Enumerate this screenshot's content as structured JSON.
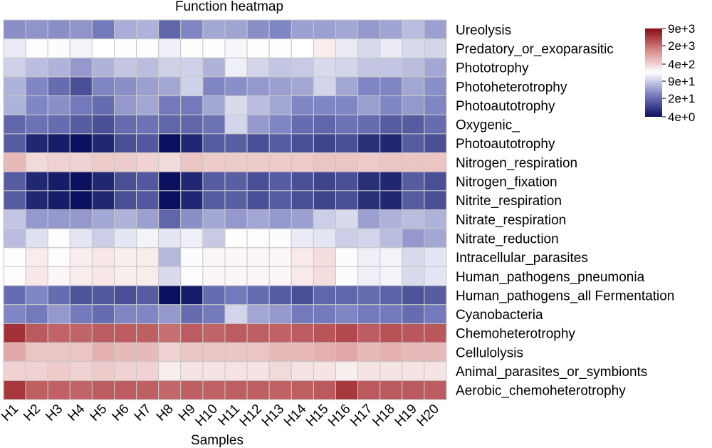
{
  "chart_data": {
    "type": "heatmap",
    "title": "Function heatmap",
    "xlabel": "Samples",
    "ylabel": "",
    "x": [
      "H1",
      "H2",
      "H3",
      "H4",
      "H5",
      "H6",
      "H7",
      "H8",
      "H9",
      "H10",
      "H11",
      "H12",
      "H13",
      "H14",
      "H15",
      "H16",
      "H17",
      "H18",
      "H19",
      "H20"
    ],
    "y": [
      "Ureolysis",
      "Predatory_or_exoparasitic",
      "Phototrophy",
      "Photoheterotrophy",
      "Photoautotrophy",
      "Oxygenic_",
      "Photoautotrophy",
      "Nitrogen_respiration",
      "Nitrogen_fixation",
      "Nitrite_respiration",
      "Nitrate_respiration",
      "Nitrate_reduction",
      "Intracellular_parasites",
      "Human_pathogens_pneumonia",
      "Human_pathogens_all Fermentation",
      "Cyanobacteria",
      "Chemoheterotrophy",
      "Cellulolysis",
      "Animal_parasites_or_symbionts",
      "Aerobic_chemoheterotrophy"
    ],
    "scale": "log",
    "color_scale": {
      "low": "#0a0f5e",
      "mid": "#ffffff",
      "high": "#8b0a14",
      "ticks": [
        "9e+3",
        "2e+3",
        "4e+2",
        "9e+1",
        "2e+1",
        "4e+0"
      ],
      "tick_values": [
        9000,
        2000,
        400,
        90,
        20,
        4
      ]
    },
    "values": [
      [
        35,
        38,
        35,
        38,
        25,
        55,
        60,
        18,
        30,
        50,
        48,
        35,
        30,
        45,
        45,
        50,
        40,
        48,
        70,
        45
      ],
      [
        140,
        200,
        180,
        160,
        190,
        200,
        200,
        150,
        200,
        200,
        170,
        200,
        200,
        190,
        260,
        140,
        110,
        140,
        110,
        100
      ],
      [
        95,
        70,
        60,
        40,
        60,
        80,
        70,
        95,
        95,
        60,
        150,
        100,
        80,
        85,
        110,
        100,
        80,
        80,
        70,
        50
      ],
      [
        60,
        30,
        20,
        12,
        30,
        35,
        45,
        50,
        95,
        30,
        35,
        40,
        45,
        50,
        100,
        50,
        30,
        30,
        50,
        35
      ],
      [
        60,
        30,
        35,
        25,
        20,
        40,
        50,
        25,
        25,
        50,
        110,
        70,
        50,
        30,
        30,
        30,
        45,
        30,
        40,
        30
      ],
      [
        18,
        22,
        20,
        15,
        12,
        20,
        22,
        18,
        18,
        22,
        100,
        40,
        30,
        20,
        18,
        22,
        20,
        15,
        15,
        20
      ],
      [
        15,
        6,
        5,
        4,
        6,
        12,
        14,
        4,
        6,
        15,
        16,
        12,
        15,
        12,
        10,
        12,
        7,
        6,
        15,
        12
      ],
      [
        600,
        350,
        400,
        400,
        450,
        450,
        400,
        350,
        500,
        450,
        450,
        450,
        450,
        450,
        500,
        500,
        450,
        500,
        500,
        500
      ],
      [
        15,
        6,
        5,
        4,
        6,
        12,
        14,
        4,
        6,
        15,
        16,
        12,
        15,
        12,
        10,
        12,
        7,
        6,
        15,
        12
      ],
      [
        15,
        6,
        5,
        4,
        6,
        12,
        14,
        4,
        6,
        15,
        16,
        12,
        15,
        12,
        10,
        12,
        7,
        6,
        15,
        12
      ],
      [
        80,
        40,
        40,
        40,
        50,
        60,
        45,
        18,
        35,
        50,
        40,
        50,
        40,
        45,
        90,
        110,
        45,
        60,
        70,
        60
      ],
      [
        70,
        120,
        200,
        130,
        90,
        130,
        160,
        130,
        150,
        85,
        200,
        200,
        180,
        140,
        130,
        90,
        100,
        70,
        40,
        50
      ],
      [
        200,
        260,
        200,
        250,
        280,
        250,
        260,
        65,
        180,
        220,
        220,
        220,
        220,
        270,
        330,
        180,
        150,
        160,
        110,
        130
      ],
      [
        200,
        280,
        220,
        260,
        280,
        250,
        260,
        110,
        200,
        220,
        220,
        220,
        220,
        270,
        330,
        180,
        150,
        160,
        110,
        130
      ],
      [
        20,
        30,
        20,
        13,
        14,
        12,
        15,
        4,
        5,
        20,
        25,
        20,
        15,
        12,
        18,
        18,
        20,
        17,
        13,
        15
      ],
      [
        30,
        25,
        40,
        25,
        20,
        30,
        30,
        40,
        20,
        25,
        100,
        50,
        40,
        25,
        25,
        30,
        25,
        25,
        20,
        25
      ],
      [
        5000,
        2700,
        2300,
        2300,
        2600,
        2600,
        2500,
        2000,
        2600,
        2300,
        2600,
        2500,
        2400,
        2600,
        2900,
        3500,
        2600,
        3000,
        2800,
        2800
      ],
      [
        800,
        500,
        500,
        500,
        700,
        600,
        600,
        400,
        500,
        500,
        500,
        500,
        600,
        600,
        700,
        800,
        600,
        700,
        600,
        600
      ],
      [
        400,
        400,
        450,
        400,
        450,
        400,
        400,
        250,
        300,
        300,
        300,
        300,
        350,
        300,
        300,
        250,
        300,
        300,
        300,
        300
      ],
      [
        4500,
        2500,
        2400,
        2300,
        2600,
        2600,
        2500,
        2200,
        2500,
        2400,
        2500,
        2500,
        2400,
        2500,
        2700,
        4500,
        2700,
        2700,
        2700,
        2600
      ]
    ]
  }
}
